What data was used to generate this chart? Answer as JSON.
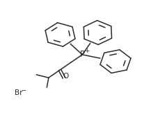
{
  "bg_color": "#ffffff",
  "line_color": "#2a2a2a",
  "text_color": "#2a2a2a",
  "lw": 1.1,
  "fig_width": 2.17,
  "fig_height": 1.66,
  "dpi": 100,
  "P_label": "P",
  "P_charge": "+",
  "O_label": "O",
  "Br_label": "Br",
  "Br_charge": "−"
}
